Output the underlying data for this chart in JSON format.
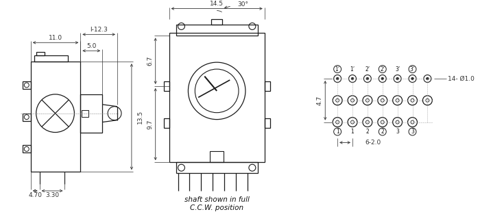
{
  "bg_color": "#ffffff",
  "line_color": "#1a1a1a",
  "dim_color": "#333333",
  "text_color": "#111111",
  "caption_line1": "shaft shown in full",
  "caption_line2": "C.C.W. position",
  "dim_14phi": "14- Ø1.0",
  "dim_6_2": "6-2.0",
  "dim_4_7": "4.7",
  "dim_l123": "l-12.3",
  "dim_11": "11.0",
  "dim_5": "5.0",
  "dim_13_5": "13.5",
  "dim_4_70": "4.70",
  "dim_3_30": "3.30",
  "dim_14_5": "14.5",
  "dim_6_7": "6.7",
  "dim_9_7": "9.7",
  "dim_30": "30°"
}
